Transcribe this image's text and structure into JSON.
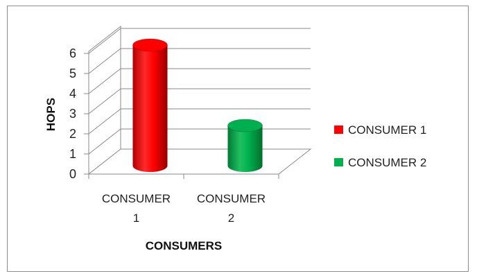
{
  "chart_data": {
    "type": "bar",
    "style": "3d-cylinder",
    "categories": [
      [
        "CONSUMER",
        "1"
      ],
      [
        "CONSUMER",
        "2"
      ]
    ],
    "values": [
      6,
      2
    ],
    "colors": [
      "#ff0000",
      "#00b050"
    ],
    "legend": [
      "CONSUMER 1",
      "CONSUMER 2"
    ],
    "legend_position": "right",
    "xlabel": "CONSUMERS",
    "ylabel": "HOPS",
    "ylim": [
      0,
      6
    ],
    "yticks": [
      0,
      1,
      2,
      3,
      4,
      5,
      6
    ],
    "grid": true
  }
}
